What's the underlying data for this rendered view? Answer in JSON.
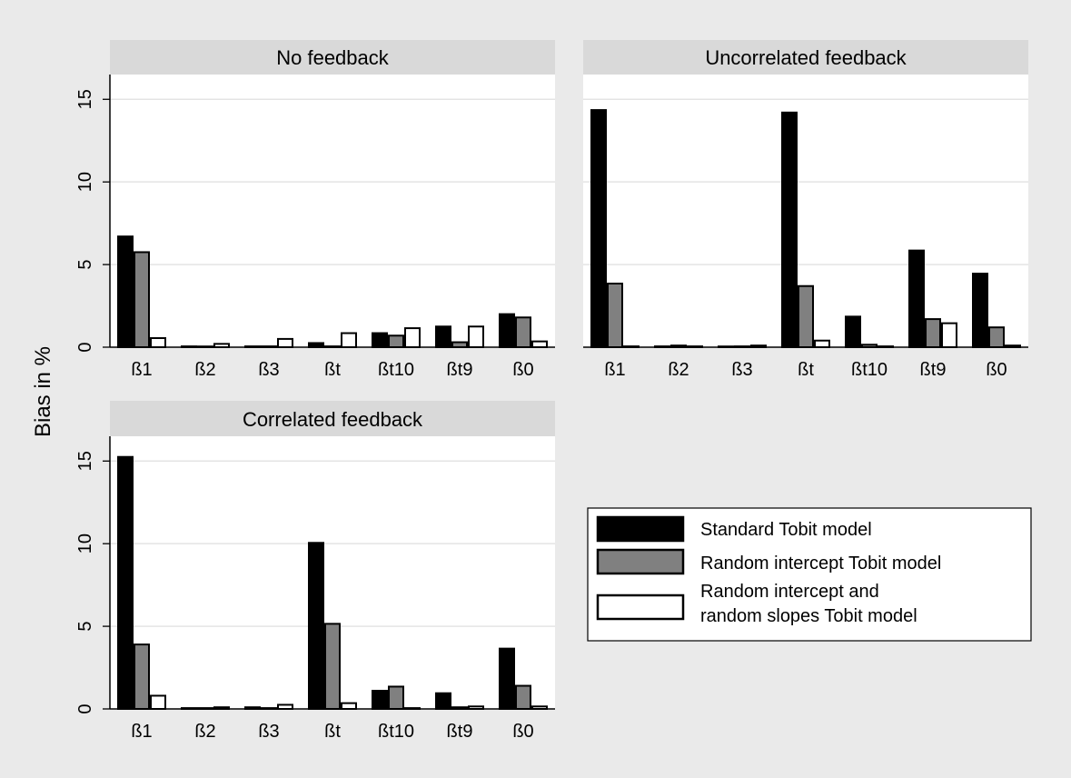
{
  "chart_data": {
    "type": "bar",
    "ylabel": "Bias in %",
    "ylim": [
      0,
      16.5
    ],
    "yticks": [
      0,
      5,
      10,
      15
    ],
    "categories": [
      "ß1",
      "ß2",
      "ß3",
      "ßt",
      "ßt10",
      "ßt9",
      "ß0"
    ],
    "series_styles": [
      {
        "fill": "#000000",
        "stroke": "#000000"
      },
      {
        "fill": "#808080",
        "stroke": "#000000"
      },
      {
        "fill": "#ffffff",
        "stroke": "#000000"
      }
    ],
    "legend": {
      "placement": "bottom-right",
      "entries": [
        {
          "lines": [
            "Standard Tobit model"
          ]
        },
        {
          "lines": [
            "Random intercept Tobit  model"
          ]
        },
        {
          "lines": [
            "Random intercept and",
            "random slopes Tobit model"
          ]
        }
      ]
    },
    "panels": [
      {
        "title": "No feedback",
        "series": [
          {
            "values": [
              6.7,
              0.05,
              0.05,
              0.25,
              0.85,
              1.25,
              2.0
            ]
          },
          {
            "values": [
              5.75,
              0.0,
              0.05,
              0.05,
              0.7,
              0.3,
              1.8
            ]
          },
          {
            "values": [
              0.55,
              0.2,
              0.5,
              0.85,
              1.15,
              1.25,
              0.35
            ]
          }
        ]
      },
      {
        "title": "Uncorrelated feedback",
        "series": [
          {
            "values": [
              14.35,
              0.05,
              0.0,
              14.2,
              1.85,
              5.85,
              4.45
            ]
          },
          {
            "values": [
              3.85,
              0.1,
              0.05,
              3.7,
              0.15,
              1.7,
              1.2
            ]
          },
          {
            "values": [
              0.05,
              0.05,
              0.1,
              0.4,
              0.05,
              1.45,
              0.1
            ]
          }
        ]
      },
      {
        "title": "Correlated feedback",
        "series": [
          {
            "values": [
              15.25,
              0.05,
              0.1,
              10.05,
              1.1,
              0.95,
              3.65
            ]
          },
          {
            "values": [
              3.9,
              0.05,
              0.05,
              5.15,
              1.35,
              0.1,
              1.4
            ]
          },
          {
            "values": [
              0.8,
              0.1,
              0.25,
              0.35,
              0.05,
              0.15,
              0.15
            ]
          }
        ]
      }
    ]
  }
}
